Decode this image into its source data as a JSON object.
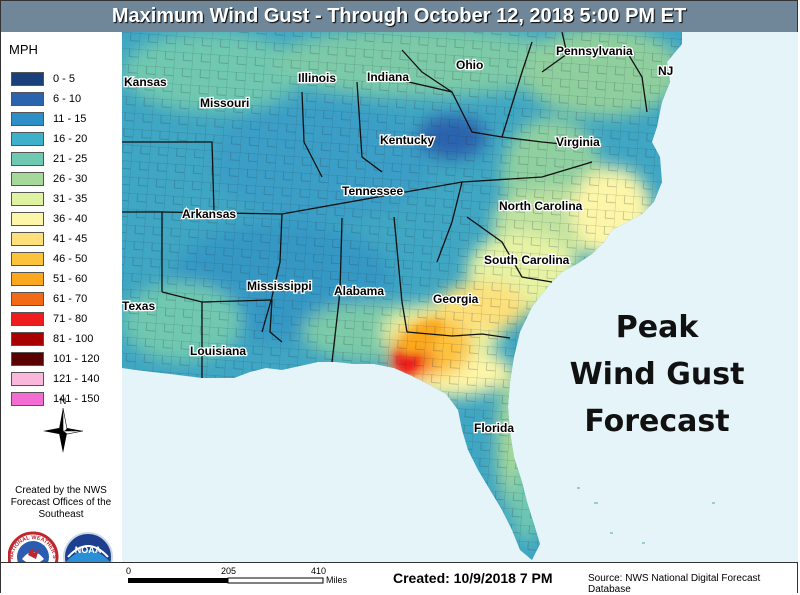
{
  "title": "Maximum Wind Gust - Through October 12, 2018 5:00 PM ET",
  "legend": {
    "title": "MPH",
    "items": [
      {
        "label": "0 - 5",
        "color": "#1b3f7a"
      },
      {
        "label": "6 - 10",
        "color": "#2a63ae"
      },
      {
        "label": "11 - 15",
        "color": "#2e8fc6"
      },
      {
        "label": "16 - 20",
        "color": "#3fb0c9"
      },
      {
        "label": "21 - 25",
        "color": "#6fc8b0"
      },
      {
        "label": "26 - 30",
        "color": "#a6d89a"
      },
      {
        "label": "31 - 35",
        "color": "#dff2a2"
      },
      {
        "label": "36 - 40",
        "color": "#fdf6a8"
      },
      {
        "label": "41 - 45",
        "color": "#fde07a"
      },
      {
        "label": "46 - 50",
        "color": "#fdc23c"
      },
      {
        "label": "51 - 60",
        "color": "#fba81e"
      },
      {
        "label": "61 - 70",
        "color": "#f36a16"
      },
      {
        "label": "71 - 80",
        "color": "#ee1c1c"
      },
      {
        "label": "81 - 100",
        "color": "#a80000"
      },
      {
        "label": "101 - 120",
        "color": "#5b0000"
      },
      {
        "label": "121 - 140",
        "color": "#fbb6dc"
      },
      {
        "label": "141 - 150",
        "color": "#f36cd2"
      }
    ]
  },
  "compass_label": "N",
  "credit": "Created by the NWS Forecast Offices of the Southeast",
  "logos": {
    "left": "NATIONAL WEATHER SERVICE",
    "right": "NOAA"
  },
  "states": [
    "Kansas",
    "Missouri",
    "Illinois",
    "Indiana",
    "Ohio",
    "Pennsylvania",
    "NJ",
    "Kentucky",
    "Virginia",
    "Tennessee",
    "North Carolina",
    "Arkansas",
    "South Carolina",
    "Mississippi",
    "Alabama",
    "Georgia",
    "Texas",
    "Louisiana",
    "Florida"
  ],
  "annotation": {
    "line1": "Peak",
    "line2": "Wind Gust",
    "line3": "Forecast"
  },
  "scale": {
    "ticks": [
      "0",
      "205",
      "410"
    ],
    "unit": "Miles"
  },
  "created": "Created: 10/9/2018 7 PM",
  "source": "Source: NWS National Digital Forecast Database"
}
